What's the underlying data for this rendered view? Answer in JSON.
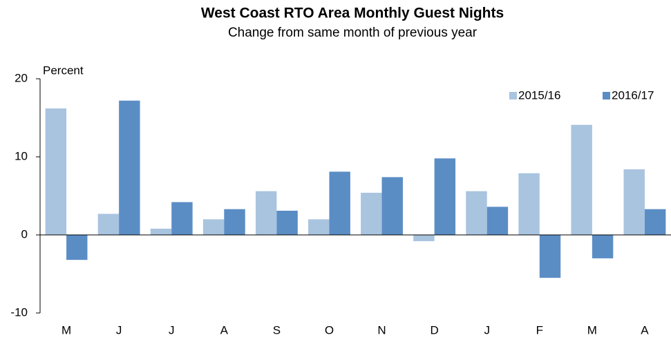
{
  "chart_data": {
    "type": "bar",
    "title": "West Coast RTO Area Monthly Guest Nights",
    "subtitle": "Change from same month of previous year",
    "y_label": "Percent",
    "categories": [
      "M",
      "J",
      "J",
      "A",
      "S",
      "O",
      "N",
      "D",
      "J",
      "F",
      "M",
      "A"
    ],
    "series": [
      {
        "name": "2015/16",
        "color": "#a9c4df",
        "values": [
          16.2,
          2.7,
          0.8,
          2.0,
          5.6,
          2.0,
          5.4,
          -0.8,
          5.6,
          7.9,
          14.1,
          8.4
        ]
      },
      {
        "name": "2016/17",
        "color": "#5b8dc5",
        "values": [
          -3.2,
          17.2,
          4.2,
          3.3,
          3.1,
          8.1,
          7.4,
          9.8,
          3.6,
          -5.5,
          -3.0,
          3.3
        ]
      }
    ],
    "ylim": [
      -10,
      20
    ],
    "yticks": [
      -10,
      0,
      10,
      20
    ],
    "grid": false,
    "legend": "upper right"
  }
}
